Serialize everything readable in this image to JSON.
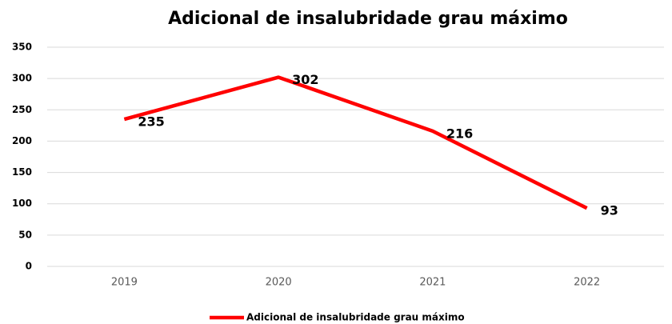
{
  "chart_data": {
    "type": "line",
    "title": "Adicional de insalubridade grau máximo",
    "categories": [
      "2019",
      "2020",
      "2021",
      "2022"
    ],
    "series": [
      {
        "name": "Adicional de insalubridade grau máximo",
        "color": "#ff0000",
        "values": [
          235,
          302,
          216,
          93
        ]
      }
    ],
    "ylim": [
      0,
      350
    ],
    "yticks": [
      0,
      50,
      100,
      150,
      200,
      250,
      300,
      350
    ],
    "grid": true,
    "legend": "bottom"
  }
}
